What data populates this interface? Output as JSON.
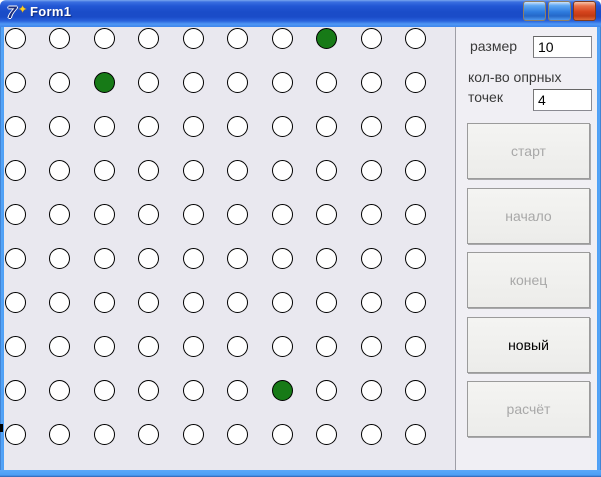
{
  "window": {
    "title": "Form1",
    "icon": "delphi-7",
    "icon_glyph": "7",
    "icon_flame_glyph": "✦"
  },
  "colors": {
    "point_default": "#ffffff",
    "point_active": "#177A17",
    "titlebar_blue": "#1A4CC8",
    "border_blue": "#4C9FF6"
  },
  "grid": {
    "rows": 10,
    "cols": 10,
    "active_points": [
      [
        0,
        7
      ],
      [
        1,
        2
      ],
      [
        8,
        6
      ]
    ]
  },
  "panel": {
    "size_label": "размер",
    "size_value": "10",
    "count_label_line1": "кол-во опрных",
    "count_label_line2": "точек",
    "count_value": "4",
    "buttons": [
      {
        "label": "старт",
        "enabled": false
      },
      {
        "label": "начало",
        "enabled": false
      },
      {
        "label": "конец",
        "enabled": false
      },
      {
        "label": "новый",
        "enabled": true
      },
      {
        "label": "расчёт",
        "enabled": false
      }
    ]
  }
}
